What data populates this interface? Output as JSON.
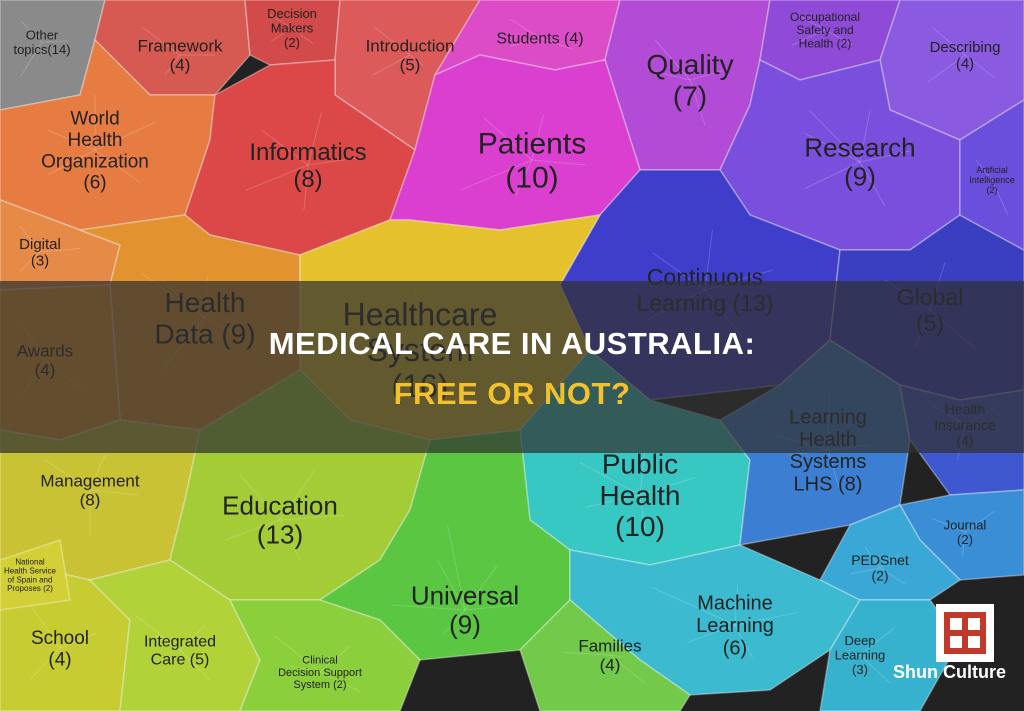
{
  "heading": {
    "line1": "MEDICAL CARE IN AUSTRALIA:",
    "line2": "FREE OR NOT?",
    "line1_color": "#ffffff",
    "line2_color": "#f2c12e"
  },
  "watermark": {
    "text": "Shun Culture",
    "logo_color": "#c0392b"
  },
  "topics": [
    {
      "label": "Other\ntopics(14)",
      "color": "#8a8a8a"
    },
    {
      "label": "Framework\n(4)",
      "color": "#d65a52"
    },
    {
      "label": "Decision\nMakers\n(2)",
      "color": "#d24a4a"
    },
    {
      "label": "Introduction\n(5)",
      "color": "#dc5a5a"
    },
    {
      "label": "Students (4)",
      "color": "#dd4cc7"
    },
    {
      "label": "Quality\n(7)",
      "color": "#b24cd6"
    },
    {
      "label": "Occupational\nSafety and\nHealth (2)",
      "color": "#8f4ad8"
    },
    {
      "label": "Describing\n(4)",
      "color": "#8a5ae0"
    },
    {
      "label": "World\nHealth\nOrganization\n(6)",
      "color": "#e67c42"
    },
    {
      "label": "Informatics\n(8)",
      "color": "#dc4848"
    },
    {
      "label": "Patients\n(10)",
      "color": "#db3fcf"
    },
    {
      "label": "Research\n(9)",
      "color": "#7a4fde"
    },
    {
      "label": "Digital\n(3)",
      "color": "#e68a48"
    },
    {
      "label": "Continuous\nLearning (13)",
      "color": "#3e3ecb"
    },
    {
      "label": "Health\nData (9)",
      "color": "#e2932f"
    },
    {
      "label": "Healthcare\nSystem\n(16)",
      "color": "#e6c12e"
    },
    {
      "label": "Global\n(5)",
      "color": "#3a3fc2"
    },
    {
      "label": "Awards\n(4)",
      "color": "#e8962c"
    },
    {
      "label": "Management\n(8)",
      "color": "#c9c234"
    },
    {
      "label": "Education\n(13)",
      "color": "#a3cc37"
    },
    {
      "label": "Public\nHealth\n(10)",
      "color": "#38c8c4"
    },
    {
      "label": "Learning\nHealth\nSystems\nLHS (8)",
      "color": "#3c7fd2"
    },
    {
      "label": "Health\nInsurance\n(4)",
      "color": "#3f58cf"
    },
    {
      "label": "Journal\n(2)",
      "color": "#3a8ed6"
    },
    {
      "label": "PEDSnet\n(2)",
      "color": "#3aa8d6"
    },
    {
      "label": "Universal\n(9)",
      "color": "#5ac642"
    },
    {
      "label": "Machine\nLearning\n(6)",
      "color": "#3bbad0"
    },
    {
      "label": "School\n(4)",
      "color": "#c8cc33"
    },
    {
      "label": "Integrated\nCare (5)",
      "color": "#b2d23a"
    },
    {
      "label": "Clinical\nDecision Support\nSystem (2)",
      "color": "#8ccf3c"
    },
    {
      "label": "Families\n(4)",
      "color": "#72c94a"
    },
    {
      "label": "Deep\nLearning\n(3)",
      "color": "#36b2cf"
    },
    {
      "label": "National\nHealth Service\nof Spain and\nProposes (2)",
      "color": "#d3cf36"
    },
    {
      "label": "Artificial\nIntelligence\n(2)",
      "color": "#6a4fdc"
    }
  ]
}
